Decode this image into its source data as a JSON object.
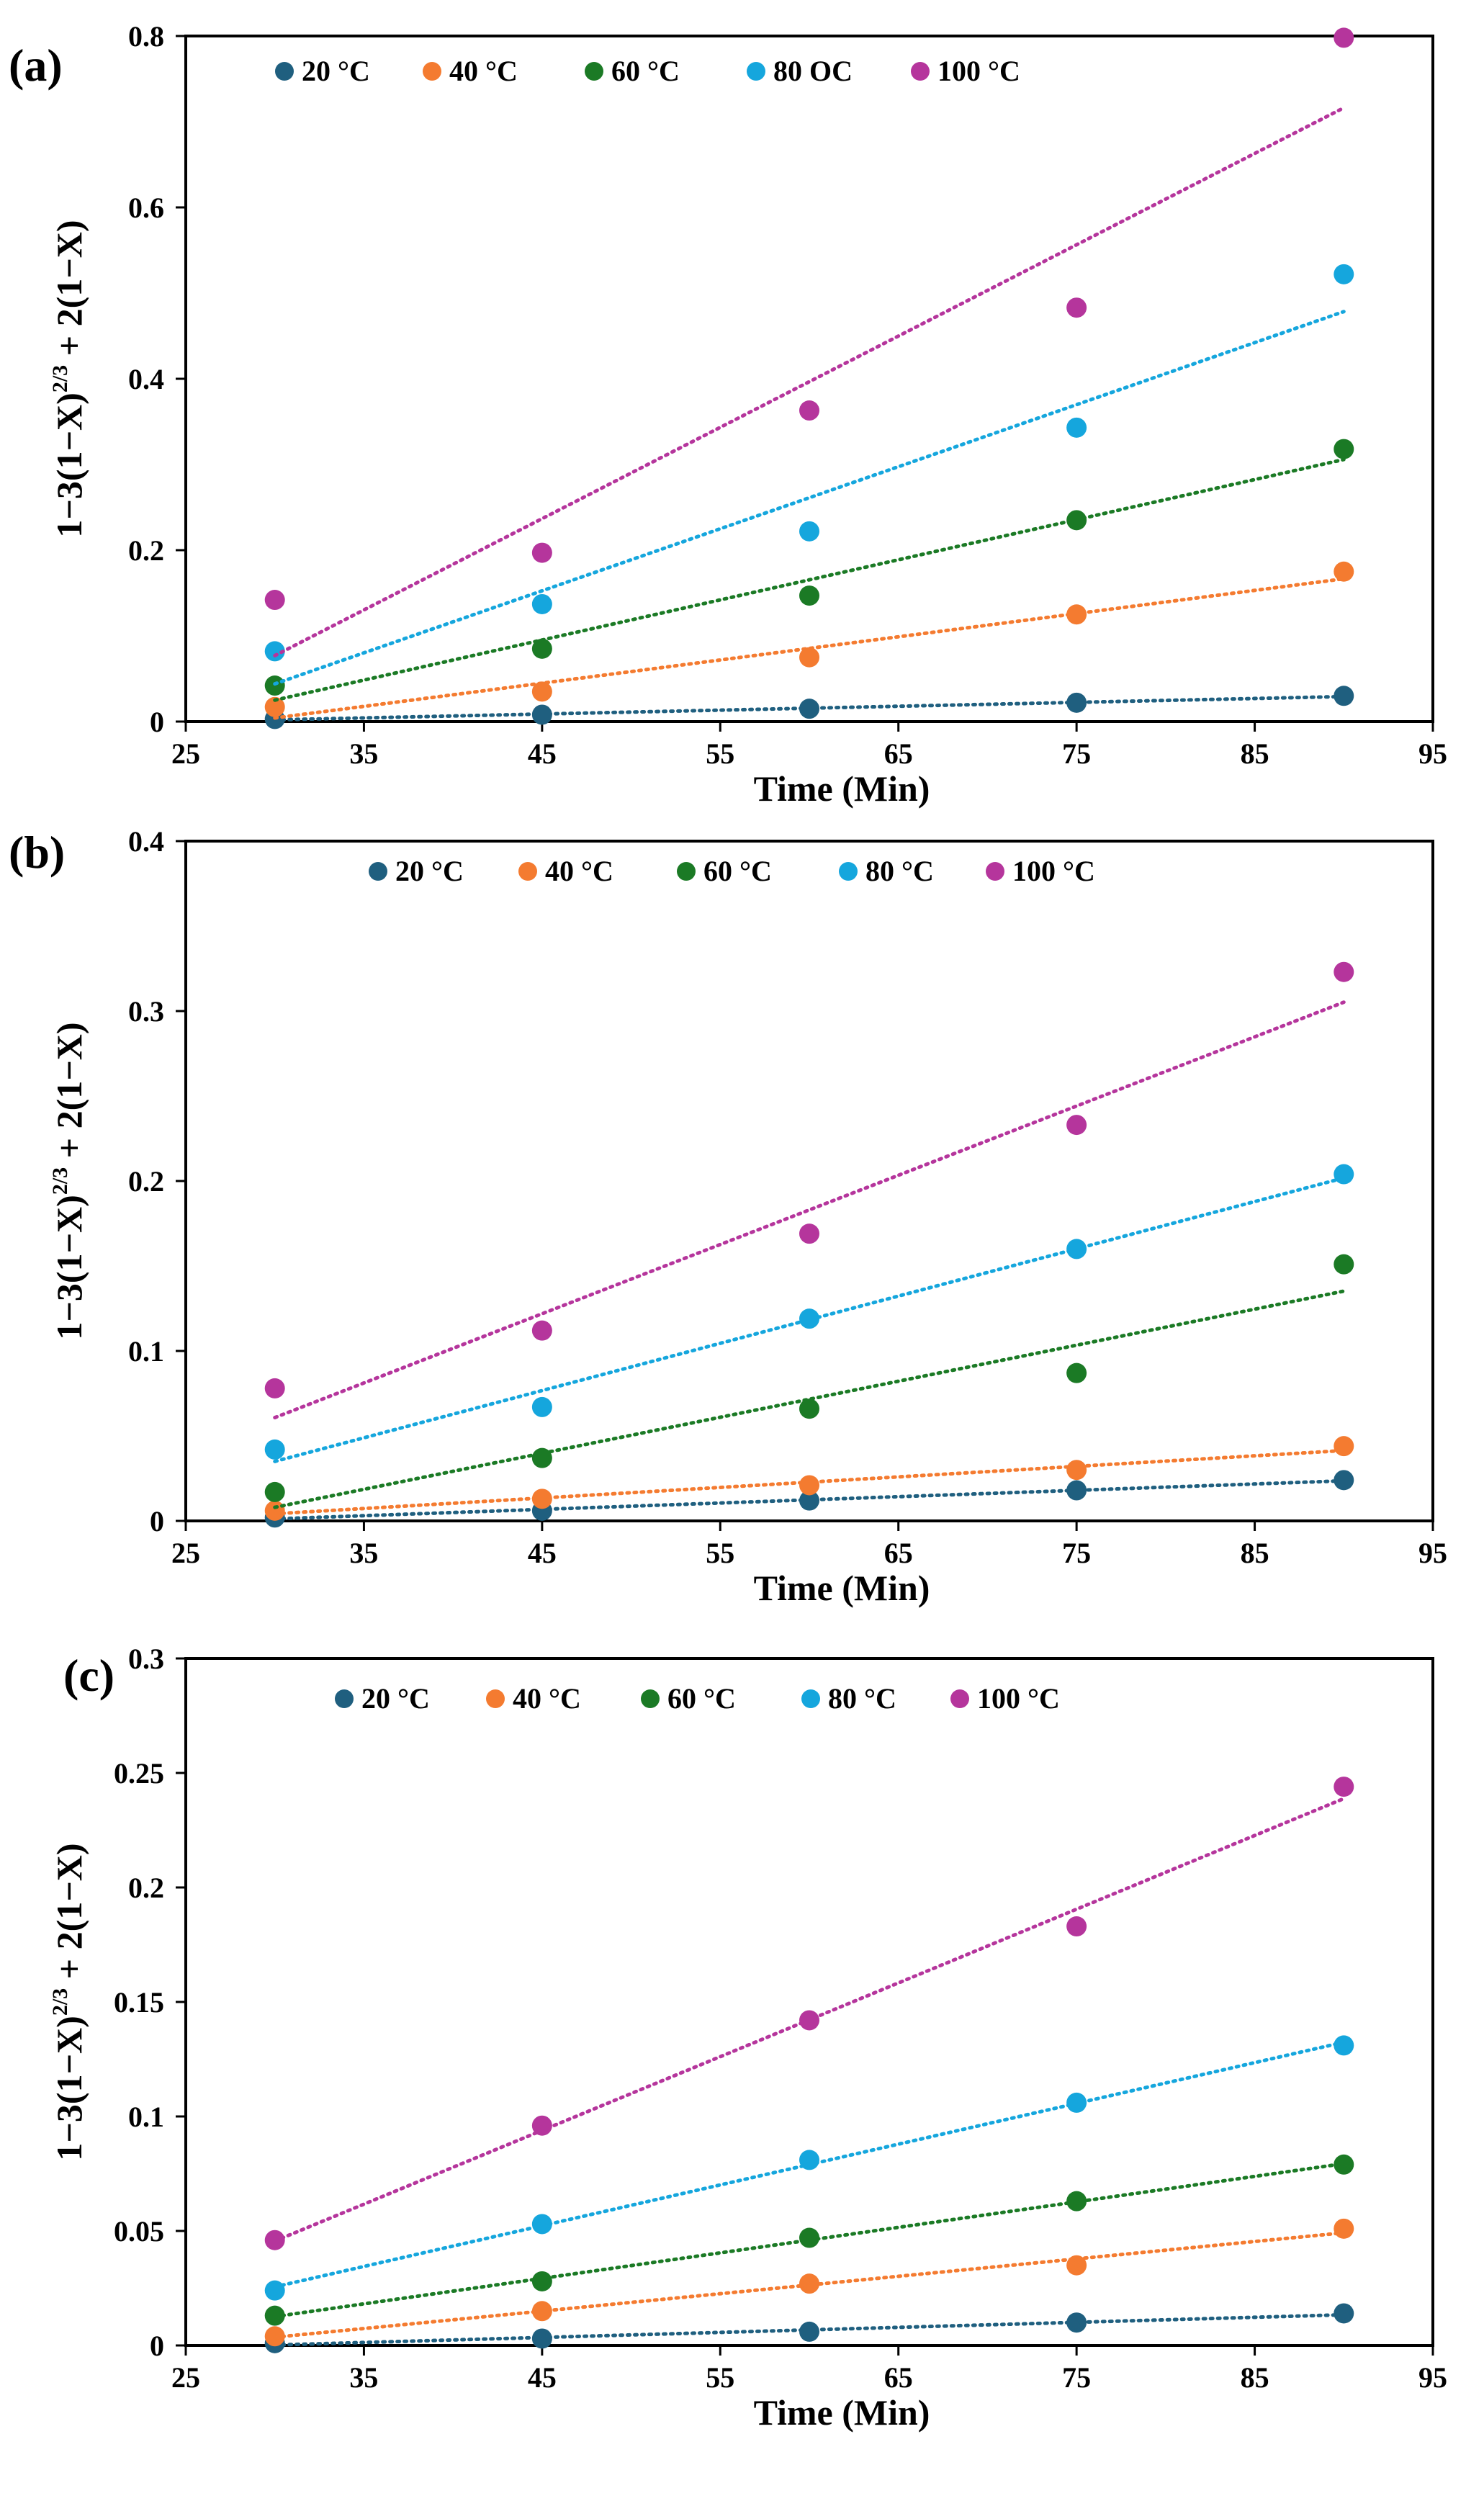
{
  "chart_data": [
    {
      "type": "scatter",
      "panel_label": "(a)",
      "xlabel": "Time (Min)",
      "ylabel": {
        "main": "1−3(1−X)",
        "sup": "2/3",
        "tail": " + 2(1−X)"
      },
      "xlim": [
        25,
        95
      ],
      "ylim": [
        0,
        0.8
      ],
      "xticks": [
        "25",
        "35",
        "45",
        "55",
        "65",
        "75",
        "85",
        "95"
      ],
      "yticks": [
        "0",
        "0.2",
        "0.4",
        "0.6",
        "0.8"
      ],
      "grid": false,
      "legend_position": "top",
      "trendline": "linear, dotted",
      "x": [
        30,
        45,
        60,
        75,
        90
      ],
      "series": [
        {
          "name": "20 °C",
          "color": "#1f5f7f",
          "values": [
            0.003,
            0.008,
            0.015,
            0.022,
            0.03
          ]
        },
        {
          "name": "40 °C",
          "color": "#f47b30",
          "values": [
            0.017,
            0.035,
            0.075,
            0.125,
            0.175
          ]
        },
        {
          "name": "60 °C",
          "color": "#1b7a25",
          "values": [
            0.042,
            0.085,
            0.147,
            0.235,
            0.318
          ]
        },
        {
          "name": "80 OC",
          "color": "#15a6dd",
          "values": [
            0.082,
            0.137,
            0.222,
            0.343,
            0.522
          ]
        },
        {
          "name": "100 °C",
          "color": "#b5359c",
          "values": [
            0.142,
            0.197,
            0.363,
            0.483,
            0.798
          ]
        }
      ]
    },
    {
      "type": "scatter",
      "panel_label": "(b)",
      "xlabel": "Time (Min)",
      "ylabel": {
        "main": "1−3(1−X)",
        "sup": "2/3",
        "tail": " + 2(1−X)"
      },
      "xlim": [
        25,
        95
      ],
      "ylim": [
        0,
        0.4
      ],
      "xticks": [
        "25",
        "35",
        "45",
        "55",
        "65",
        "75",
        "85",
        "95"
      ],
      "yticks": [
        "0",
        "0.1",
        "0.2",
        "0.3",
        "0.4"
      ],
      "grid": false,
      "legend_position": "top",
      "trendline": "linear, dotted",
      "x": [
        30,
        45,
        60,
        75,
        90
      ],
      "series": [
        {
          "name": "20 °C",
          "color": "#1f5f7f",
          "values": [
            0.002,
            0.006,
            0.012,
            0.018,
            0.024
          ]
        },
        {
          "name": "40 °C",
          "color": "#f47b30",
          "values": [
            0.006,
            0.013,
            0.021,
            0.03,
            0.044
          ]
        },
        {
          "name": "60 °C",
          "color": "#1b7a25",
          "values": [
            0.017,
            0.037,
            0.066,
            0.087,
            0.151
          ]
        },
        {
          "name": "80 °C",
          "color": "#15a6dd",
          "values": [
            0.042,
            0.067,
            0.119,
            0.16,
            0.204
          ]
        },
        {
          "name": "100 °C",
          "color": "#b5359c",
          "values": [
            0.078,
            0.112,
            0.169,
            0.233,
            0.323
          ]
        }
      ]
    },
    {
      "type": "scatter",
      "panel_label": "(c)",
      "xlabel": "Time (Min)",
      "ylabel": {
        "main": "1−3(1−X)",
        "sup": "2/3",
        "tail": " + 2(1−X)"
      },
      "xlim": [
        25,
        95
      ],
      "ylim": [
        0,
        0.3
      ],
      "xticks": [
        "25",
        "35",
        "45",
        "55",
        "65",
        "75",
        "85",
        "95"
      ],
      "yticks": [
        "0",
        "0.05",
        "0.1",
        "0.15",
        "0.2",
        "0.25",
        "0.3"
      ],
      "grid": false,
      "legend_position": "top",
      "trendline": "linear, dotted",
      "x": [
        30,
        45,
        60,
        75,
        90
      ],
      "series": [
        {
          "name": "20 °C",
          "color": "#1f5f7f",
          "values": [
            0.001,
            0.003,
            0.006,
            0.01,
            0.014
          ]
        },
        {
          "name": "40 °C",
          "color": "#f47b30",
          "values": [
            0.004,
            0.015,
            0.027,
            0.035,
            0.051
          ]
        },
        {
          "name": "60 °C",
          "color": "#1b7a25",
          "values": [
            0.013,
            0.028,
            0.047,
            0.063,
            0.079
          ]
        },
        {
          "name": "80 °C",
          "color": "#15a6dd",
          "values": [
            0.024,
            0.053,
            0.081,
            0.106,
            0.131
          ]
        },
        {
          "name": "100 °C",
          "color": "#b5359c",
          "values": [
            0.046,
            0.096,
            0.142,
            0.183,
            0.244
          ]
        }
      ]
    }
  ]
}
